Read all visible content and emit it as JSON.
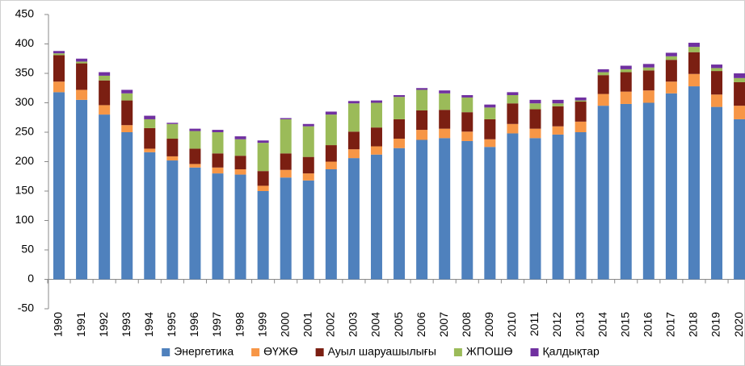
{
  "chart_data": {
    "type": "stacked_bar",
    "categories": [
      "1990",
      "1991",
      "1992",
      "1993",
      "1994",
      "1995",
      "1996",
      "1997",
      "1998",
      "1999",
      "2000",
      "2001",
      "2002",
      "2003",
      "2004",
      "2005",
      "2006",
      "2007",
      "2008",
      "2009",
      "2010",
      "2011",
      "2012",
      "2013",
      "2014",
      "2015",
      "2016",
      "2017",
      "2018",
      "2019",
      "2020"
    ],
    "series": [
      {
        "name": "Энергетика",
        "color": "#4f81bd",
        "values": [
          318,
          305,
          280,
          250,
          216,
          202,
          190,
          180,
          178,
          150,
          173,
          168,
          187,
          206,
          212,
          223,
          237,
          240,
          235,
          225,
          248,
          240,
          246,
          250,
          295,
          298,
          300,
          316,
          328,
          293,
          272
        ]
      },
      {
        "name": "ӨҮЖӨ",
        "color": "#f79646",
        "values": [
          18,
          17,
          16,
          12,
          6,
          7,
          6,
          10,
          9,
          9,
          13,
          12,
          13,
          15,
          14,
          16,
          17,
          16,
          16,
          13,
          16,
          16,
          14,
          18,
          20,
          21,
          21,
          20,
          21,
          21,
          23
        ]
      },
      {
        "name": "Ауыл шаруашылығы",
        "color": "#7b1f12",
        "values": [
          45,
          45,
          42,
          42,
          35,
          30,
          26,
          24,
          23,
          25,
          28,
          28,
          28,
          30,
          32,
          33,
          33,
          32,
          33,
          34,
          35,
          33,
          34,
          34,
          32,
          33,
          34,
          37,
          37,
          40,
          40
        ]
      },
      {
        "name": "ЖПОШӨ",
        "color": "#9bbb59",
        "values": [
          3,
          3,
          8,
          12,
          15,
          25,
          30,
          36,
          28,
          48,
          58,
          52,
          52,
          48,
          42,
          38,
          35,
          28,
          25,
          20,
          14,
          10,
          5,
          2,
          5,
          5,
          5,
          6,
          9,
          5,
          7
        ]
      },
      {
        "name": "Қалдықтар",
        "color": "#7030a0",
        "values": [
          4,
          5,
          6,
          6,
          6,
          2,
          4,
          4,
          5,
          4,
          2,
          4,
          5,
          4,
          4,
          3,
          3,
          5,
          4,
          5,
          5,
          6,
          6,
          5,
          5,
          6,
          6,
          6,
          7,
          6,
          8
        ]
      }
    ],
    "ylim": [
      -50,
      450
    ],
    "yticks": [
      -50,
      0,
      50,
      100,
      150,
      200,
      250,
      300,
      350,
      400,
      450
    ],
    "grid": false,
    "legend": "bottom"
  }
}
